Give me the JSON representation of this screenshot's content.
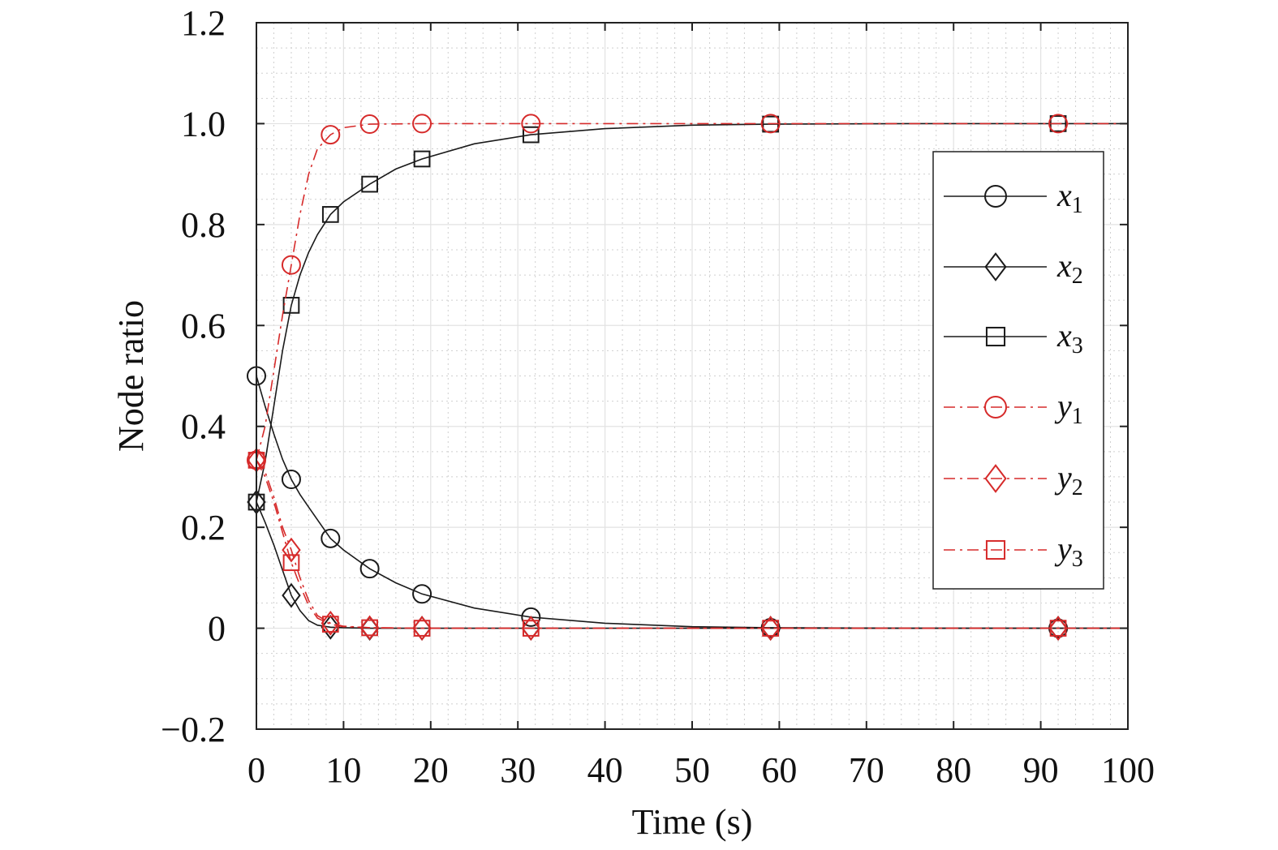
{
  "chart_data": {
    "type": "line",
    "title": "",
    "xlabel": "Time (s)",
    "ylabel": "Node ratio",
    "xlim": [
      0,
      100
    ],
    "ylim": [
      -0.2,
      1.2
    ],
    "xticks": [
      0,
      10,
      20,
      30,
      40,
      50,
      60,
      70,
      80,
      90,
      100
    ],
    "xtick_labels": [
      "0",
      "10",
      "20",
      "30",
      "40",
      "50",
      "60",
      "70",
      "80",
      "90",
      "100"
    ],
    "yticks": [
      -0.2,
      0,
      0.2,
      0.4,
      0.6,
      0.8,
      1.0,
      1.2
    ],
    "ytick_labels": [
      "−0.2",
      "0",
      "0.2",
      "0.4",
      "0.6",
      "0.8",
      "1.0",
      "1.2"
    ],
    "grid": true,
    "minor_grid": true,
    "legend_position": "right",
    "marker_x": [
      0,
      4,
      8.5,
      13,
      19,
      31.5,
      59,
      92
    ],
    "series": [
      {
        "name": "x",
        "subscript": "1",
        "color": "#1a1a1a",
        "line_style": "solid",
        "marker": "circle",
        "x": [
          0,
          1,
          2,
          3,
          4,
          5,
          6,
          7,
          8.5,
          10,
          13,
          16,
          19,
          25,
          31.5,
          40,
          50,
          59,
          75,
          92,
          100
        ],
        "y": [
          0.5,
          0.44,
          0.385,
          0.335,
          0.295,
          0.265,
          0.24,
          0.215,
          0.178,
          0.155,
          0.118,
          0.09,
          0.068,
          0.04,
          0.022,
          0.01,
          0.003,
          0.001,
          0,
          0,
          0
        ],
        "marker_y": [
          0.5,
          0.295,
          0.178,
          0.118,
          0.068,
          0.022,
          0.001,
          0
        ]
      },
      {
        "name": "x",
        "subscript": "2",
        "color": "#1a1a1a",
        "line_style": "solid",
        "marker": "diamond",
        "x": [
          0,
          1,
          2,
          3,
          4,
          5,
          6,
          7,
          8.5,
          10,
          13,
          19,
          31.5,
          59,
          92,
          100
        ],
        "y": [
          0.25,
          0.21,
          0.165,
          0.115,
          0.065,
          0.035,
          0.015,
          0.006,
          0.002,
          0.001,
          0,
          0,
          0,
          0,
          0,
          0
        ],
        "marker_y": [
          0.25,
          0.065,
          0.002,
          0,
          0,
          0,
          0,
          0
        ]
      },
      {
        "name": "x",
        "subscript": "3",
        "color": "#1a1a1a",
        "line_style": "solid",
        "marker": "square",
        "x": [
          0,
          1,
          2,
          3,
          4,
          5,
          6,
          7,
          8.5,
          10,
          13,
          16,
          19,
          25,
          31.5,
          40,
          50,
          59,
          75,
          92,
          100
        ],
        "y": [
          0.25,
          0.33,
          0.44,
          0.55,
          0.64,
          0.7,
          0.745,
          0.78,
          0.82,
          0.845,
          0.88,
          0.91,
          0.93,
          0.96,
          0.978,
          0.99,
          0.997,
          0.999,
          1.0,
          1.0,
          1.0
        ],
        "marker_y": [
          0.25,
          0.64,
          0.82,
          0.88,
          0.93,
          0.978,
          0.999,
          1.0
        ]
      },
      {
        "name": "y",
        "subscript": "1",
        "color": "#d62a2a",
        "line_style": "dashdot",
        "marker": "circle",
        "x": [
          0,
          1,
          2,
          3,
          4,
          5,
          6,
          7,
          8.5,
          10,
          13,
          19,
          31.5,
          59,
          92,
          100
        ],
        "y": [
          0.333,
          0.4,
          0.51,
          0.62,
          0.72,
          0.82,
          0.9,
          0.95,
          0.978,
          0.992,
          0.999,
          1.0,
          1.0,
          1.0,
          1.0,
          1.0
        ],
        "marker_y": [
          0.333,
          0.72,
          0.978,
          0.999,
          1.0,
          1.0,
          1.0,
          1.0
        ]
      },
      {
        "name": "y",
        "subscript": "2",
        "color": "#d62a2a",
        "line_style": "dashdot",
        "marker": "diamond",
        "x": [
          0,
          1,
          2,
          3,
          4,
          5,
          6,
          7,
          8.5,
          10,
          13,
          19,
          31.5,
          59,
          92,
          100
        ],
        "y": [
          0.333,
          0.31,
          0.26,
          0.2,
          0.155,
          0.1,
          0.055,
          0.025,
          0.01,
          0.004,
          0.001,
          0,
          0,
          0,
          0,
          0
        ],
        "marker_y": [
          0.333,
          0.155,
          0.01,
          0.001,
          0,
          0,
          0,
          0
        ]
      },
      {
        "name": "y",
        "subscript": "3",
        "color": "#d62a2a",
        "line_style": "dashdot",
        "marker": "square",
        "x": [
          0,
          1,
          2,
          3,
          4,
          5,
          6,
          7,
          8.5,
          10,
          13,
          19,
          31.5,
          59,
          92,
          100
        ],
        "y": [
          0.333,
          0.3,
          0.25,
          0.19,
          0.13,
          0.085,
          0.045,
          0.02,
          0.008,
          0.003,
          0.001,
          0,
          0,
          0,
          0,
          0
        ],
        "marker_y": [
          0.333,
          0.13,
          0.008,
          0.001,
          0,
          0,
          0,
          0
        ]
      }
    ]
  }
}
